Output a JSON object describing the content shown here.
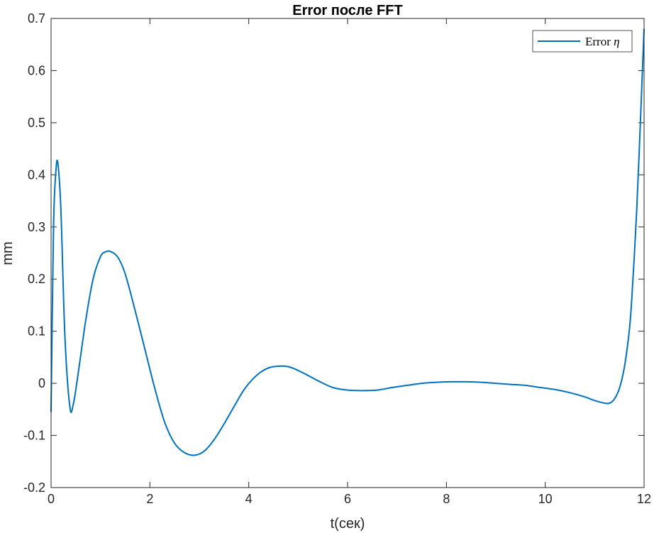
{
  "chart_data": {
    "type": "line",
    "title": "Error после FFT",
    "xlabel": "t(сек)",
    "ylabel": "mm",
    "xlim": [
      0,
      12
    ],
    "ylim": [
      -0.2,
      0.7
    ],
    "x_ticks": [
      0,
      2,
      4,
      6,
      8,
      10,
      12
    ],
    "x_tick_labels": [
      "0",
      "2",
      "4",
      "6",
      "8",
      "10",
      "12"
    ],
    "y_ticks": [
      -0.2,
      -0.1,
      0,
      0.1,
      0.2,
      0.3,
      0.4,
      0.5,
      0.6,
      0.7
    ],
    "y_tick_labels": [
      "-0.2",
      "-0.1",
      "0",
      "0.1",
      "0.2",
      "0.3",
      "0.4",
      "0.5",
      "0.6",
      "0.7"
    ],
    "grid": false,
    "legend_position": "top-right",
    "legend_label_text": "Error ",
    "legend_label_symbol": "η",
    "series": [
      {
        "name": "Error η",
        "color": "#0072BD",
        "x": [
          0,
          0.05,
          0.1,
          0.14,
          0.2,
          0.28,
          0.38,
          0.45,
          0.55,
          0.7,
          0.85,
          1.0,
          1.1,
          1.2,
          1.35,
          1.5,
          1.7,
          1.9,
          2.1,
          2.3,
          2.5,
          2.7,
          2.9,
          3.1,
          3.3,
          3.5,
          3.7,
          3.9,
          4.1,
          4.3,
          4.5,
          4.8,
          5.1,
          5.4,
          5.7,
          6.0,
          6.3,
          6.6,
          6.9,
          7.2,
          7.5,
          7.8,
          8.1,
          8.4,
          8.7,
          9.0,
          9.3,
          9.6,
          9.9,
          10.2,
          10.5,
          10.8,
          11.0,
          11.2,
          11.3,
          11.4,
          11.5,
          11.6,
          11.7,
          11.75,
          11.8,
          11.85,
          11.9,
          11.95,
          12.0
        ],
        "y": [
          -0.055,
          0.3,
          0.41,
          0.42,
          0.33,
          0.09,
          -0.045,
          -0.04,
          0.02,
          0.12,
          0.2,
          0.243,
          0.252,
          0.253,
          0.242,
          0.21,
          0.14,
          0.065,
          -0.01,
          -0.075,
          -0.115,
          -0.133,
          -0.138,
          -0.13,
          -0.108,
          -0.078,
          -0.045,
          -0.013,
          0.01,
          0.025,
          0.032,
          0.032,
          0.02,
          0.005,
          -0.008,
          -0.013,
          -0.014,
          -0.013,
          -0.008,
          -0.004,
          0.0,
          0.002,
          0.003,
          0.003,
          0.002,
          0.0,
          -0.002,
          -0.004,
          -0.008,
          -0.012,
          -0.018,
          -0.026,
          -0.033,
          -0.038,
          -0.038,
          -0.03,
          -0.01,
          0.03,
          0.1,
          0.16,
          0.24,
          0.33,
          0.44,
          0.56,
          0.68
        ]
      }
    ]
  }
}
